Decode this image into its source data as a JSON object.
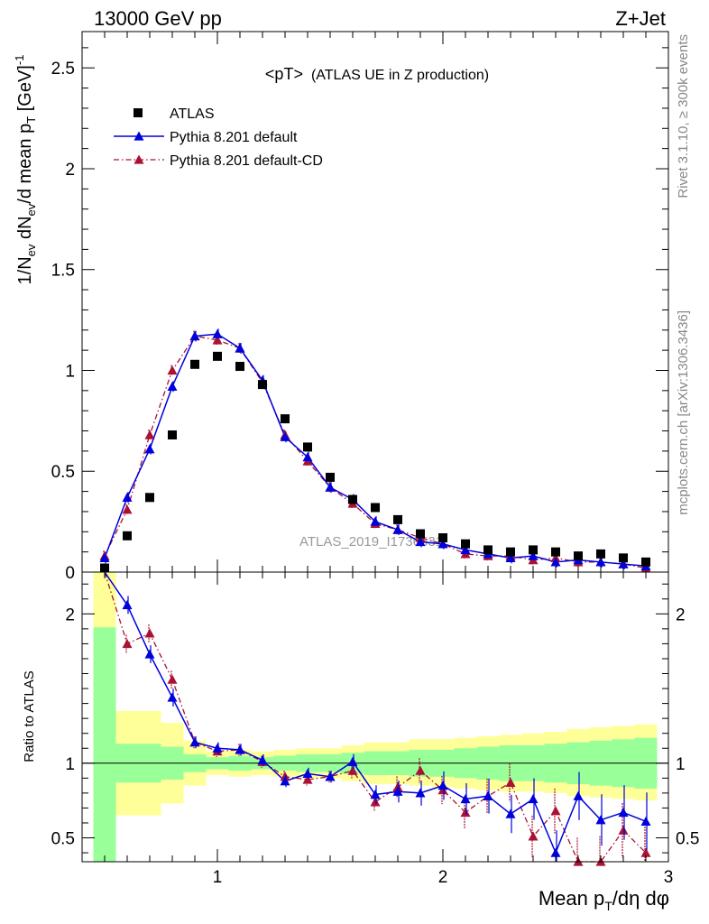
{
  "header": {
    "left": "13000 GeV pp",
    "right": "Z+Jet",
    "plot_title_main": "<pT>",
    "plot_title_sub": "(ATLAS UE in Z production)",
    "watermark": "ATLAS_2019_I1736531",
    "side_top": "Rivet 3.1.10, ≥ 300k events",
    "side_bottom": "mcplots.cern.ch [arXiv:1306.3436]"
  },
  "chart_data": [
    {
      "type": "scatter",
      "panel": "main",
      "ylabel": "1/N_ev dN_ev/d mean p_T [GeV]^-1",
      "xlim": [
        0.4,
        3.0
      ],
      "ylim": [
        0,
        2.68
      ],
      "y_ticks": [
        0,
        0.5,
        1,
        1.5,
        2,
        2.5
      ],
      "y_tick_labels": [
        "0",
        "0.5",
        "1",
        "1.5",
        "2",
        "2.5"
      ],
      "legend_position": "top-left",
      "x": [
        0.5,
        0.6,
        0.7,
        0.8,
        0.9,
        1.0,
        1.1,
        1.2,
        1.3,
        1.4,
        1.5,
        1.6,
        1.7,
        1.8,
        1.9,
        2.0,
        2.1,
        2.2,
        2.3,
        2.4,
        2.5,
        2.6,
        2.7,
        2.8,
        2.9
      ],
      "series": [
        {
          "name": "ATLAS",
          "marker": "square",
          "color": "#000000",
          "values": [
            0.02,
            0.18,
            0.37,
            0.68,
            1.03,
            1.07,
            1.02,
            0.93,
            0.76,
            0.62,
            0.47,
            0.36,
            0.32,
            0.26,
            0.19,
            0.17,
            0.14,
            0.11,
            0.1,
            0.11,
            0.1,
            0.08,
            0.09,
            0.07,
            0.05
          ]
        },
        {
          "name": "Pythia 8.201 default",
          "marker": "triangle",
          "line": "solid",
          "color": "#0000dd",
          "values": [
            0.07,
            0.37,
            0.61,
            0.92,
            1.17,
            1.18,
            1.11,
            0.95,
            0.67,
            0.57,
            0.42,
            0.36,
            0.25,
            0.21,
            0.15,
            0.14,
            0.11,
            0.09,
            0.07,
            0.08,
            0.05,
            0.06,
            0.05,
            0.04,
            0.03
          ]
        },
        {
          "name": "Pythia 8.201 default-CD",
          "marker": "triangle",
          "line": "dashdot",
          "color": "#aa1133",
          "values": [
            0.08,
            0.31,
            0.68,
            1.0,
            1.17,
            1.15,
            1.11,
            0.94,
            0.68,
            0.55,
            0.42,
            0.34,
            0.24,
            0.21,
            0.17,
            0.14,
            0.09,
            0.08,
            0.08,
            0.06,
            0.07,
            0.05,
            0.05,
            0.04,
            0.02
          ]
        }
      ]
    },
    {
      "type": "line",
      "panel": "ratio",
      "ylabel": "Ratio to ATLAS",
      "xlabel": "Mean p_T/dη dφ",
      "xlim": [
        0.4,
        3.0
      ],
      "ylim": [
        0.34,
        2.28
      ],
      "x_ticks": [
        1,
        2,
        3
      ],
      "x_tick_labels": [
        "1",
        "2",
        "3"
      ],
      "y_ticks": [
        0.5,
        1,
        2
      ],
      "y_tick_labels": [
        "0.5",
        "1",
        "2"
      ],
      "x": [
        0.5,
        0.6,
        0.7,
        0.8,
        0.9,
        1.0,
        1.1,
        1.2,
        1.3,
        1.4,
        1.5,
        1.6,
        1.7,
        1.8,
        1.9,
        2.0,
        2.1,
        2.2,
        2.3,
        2.4,
        2.5,
        2.6,
        2.7,
        2.8,
        2.9
      ],
      "uncertainty_bands": {
        "inner_color": "#99ff99",
        "outer_color": "#ffff99",
        "green_lo": [
          0.34,
          0.87,
          0.87,
          0.89,
          0.94,
          0.96,
          0.95,
          0.96,
          0.95,
          0.94,
          0.94,
          0.93,
          0.92,
          0.92,
          0.91,
          0.91,
          0.9,
          0.89,
          0.88,
          0.88,
          0.87,
          0.86,
          0.85,
          0.84,
          0.83
        ],
        "green_hi": [
          1.91,
          1.13,
          1.13,
          1.11,
          1.06,
          1.04,
          1.05,
          1.04,
          1.05,
          1.06,
          1.06,
          1.07,
          1.08,
          1.08,
          1.09,
          1.09,
          1.1,
          1.11,
          1.12,
          1.12,
          1.13,
          1.14,
          1.15,
          1.16,
          1.17
        ],
        "yellow_lo": [
          0.34,
          0.65,
          0.65,
          0.73,
          0.85,
          0.92,
          0.91,
          0.92,
          0.91,
          0.9,
          0.9,
          0.88,
          0.86,
          0.86,
          0.85,
          0.84,
          0.83,
          0.82,
          0.81,
          0.81,
          0.8,
          0.78,
          0.77,
          0.76,
          0.75
        ],
        "yellow_hi": [
          2.28,
          1.35,
          1.35,
          1.27,
          1.15,
          1.08,
          1.09,
          1.08,
          1.09,
          1.1,
          1.1,
          1.12,
          1.14,
          1.14,
          1.16,
          1.16,
          1.17,
          1.18,
          1.19,
          1.2,
          1.21,
          1.23,
          1.24,
          1.25,
          1.26
        ]
      },
      "series": [
        {
          "name": "Pythia 8.201 default",
          "color": "#0000dd",
          "values": [
            2.4,
            2.06,
            1.73,
            1.44,
            1.14,
            1.1,
            1.09,
            1.02,
            0.88,
            0.93,
            0.91,
            1.01,
            0.79,
            0.81,
            0.8,
            0.85,
            0.76,
            0.78,
            0.66,
            0.76,
            0.4,
            0.78,
            0.62,
            0.67,
            0.61
          ]
        },
        {
          "name": "Pythia 8.201 default-CD",
          "color": "#aa1133",
          "values": [
            2.4,
            1.8,
            1.87,
            1.56,
            1.14,
            1.08,
            1.09,
            1.01,
            0.91,
            0.89,
            0.91,
            0.95,
            0.74,
            0.84,
            0.95,
            0.82,
            0.67,
            0.78,
            0.87,
            0.51,
            0.68,
            0.34,
            0.34,
            0.55,
            0.4
          ]
        }
      ]
    }
  ]
}
